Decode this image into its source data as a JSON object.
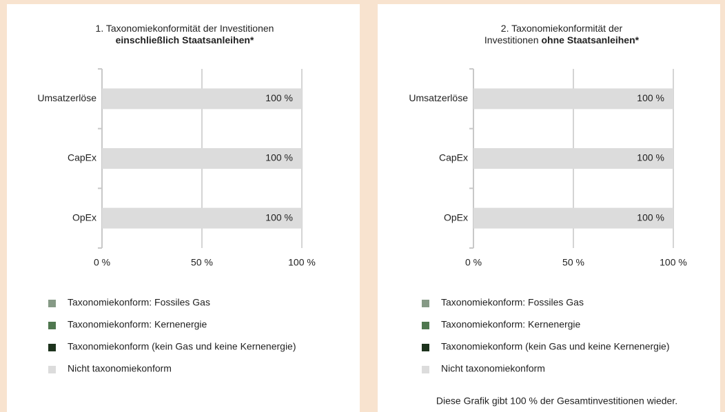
{
  "chart_data": [
    {
      "type": "bar",
      "orientation": "horizontal",
      "stacked": true,
      "title_lines": [
        [
          {
            "text": "1. Taxonomiekonformität der Investitionen",
            "bold": false
          }
        ],
        [
          {
            "text": "einschließlich Staatsanleihen*",
            "bold": true
          }
        ]
      ],
      "categories": [
        "Umsatzerlöse",
        "CapEx",
        "OpEx"
      ],
      "series": [
        {
          "name": "Taxonomiekonform: Fossiles Gas",
          "color": "#869a86",
          "values": [
            0,
            0,
            0
          ]
        },
        {
          "name": "Taxonomiekonform: Kernenergie",
          "color": "#4f774f",
          "values": [
            0,
            0,
            0
          ]
        },
        {
          "name": "Taxonomiekonform (kein Gas und keine Kernenergie)",
          "color": "#1d331d",
          "values": [
            0,
            0,
            0
          ]
        },
        {
          "name": "Nicht taxonomiekonform",
          "color": "#dcdcdc",
          "values": [
            100,
            100,
            100
          ],
          "value_labels": [
            "100 %",
            "100 %",
            "100 %"
          ]
        }
      ],
      "xlim": [
        0,
        100
      ],
      "xticks": [
        {
          "value": 0,
          "label": "0 %"
        },
        {
          "value": 50,
          "label": "50 %"
        },
        {
          "value": 100,
          "label": "100 %"
        }
      ],
      "grid": true
    },
    {
      "type": "bar",
      "orientation": "horizontal",
      "stacked": true,
      "title_lines": [
        [
          {
            "text": "2. Taxonomiekonformität der",
            "bold": false
          }
        ],
        [
          {
            "text": "Investitionen",
            "bold": false
          },
          {
            "text": "ohne Staatsanleihen*",
            "bold": true
          }
        ]
      ],
      "categories": [
        "Umsatzerlöse",
        "CapEx",
        "OpEx"
      ],
      "series": [
        {
          "name": "Taxonomiekonform: Fossiles Gas",
          "color": "#869a86",
          "values": [
            0,
            0,
            0
          ]
        },
        {
          "name": "Taxonomiekonform: Kernenergie",
          "color": "#4f774f",
          "values": [
            0,
            0,
            0
          ]
        },
        {
          "name": "Taxonomiekonform (kein Gas und keine Kernenergie)",
          "color": "#1d331d",
          "values": [
            0,
            0,
            0
          ]
        },
        {
          "name": "Nicht taxonomiekonform",
          "color": "#dcdcdc",
          "values": [
            100,
            100,
            100
          ],
          "value_labels": [
            "100 %",
            "100 %",
            "100 %"
          ]
        }
      ],
      "xlim": [
        0,
        100
      ],
      "xticks": [
        {
          "value": 0,
          "label": "0 %"
        },
        {
          "value": 50,
          "label": "50 %"
        },
        {
          "value": 100,
          "label": "100 %"
        }
      ],
      "grid": true,
      "note": "Diese Grafik gibt 100 % der Gesamtinvestitionen wieder."
    }
  ]
}
